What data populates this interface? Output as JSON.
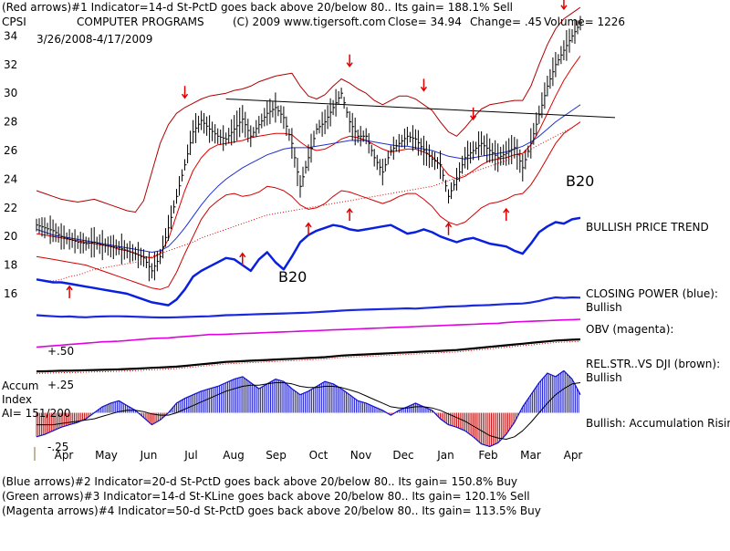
{
  "header": {
    "line1": "(Red arrows)#1 Indicator=14-d St-PctD goes back above 20/below 80.. Its gain= 188.1% Sell",
    "ticker": "CPSI",
    "company": "COMPUTER PROGRAMS",
    "copyright": "(C) 2009 www.tigersoft.com",
    "close": "Close=  34.94",
    "change": "Change= .45",
    "volume": "Volume= 1226",
    "date_range": "3/26/2008-4/17/2009"
  },
  "right_labels": {
    "bullish_price_trend": "BULLISH PRICE TREND",
    "closing_power_1": "CLOSING POWER (blue):",
    "closing_power_2": "Bullish",
    "obv": "OBV (magenta):",
    "relstr_1": "REL.STR..VS DJI (brown):",
    "relstr_2": "Bullish",
    "accum_rising": "Bullish: Accumulation Rising"
  },
  "chart_labels": {
    "b20_a": "B20",
    "b20_b": "B20"
  },
  "accum": {
    "title": "Accum",
    "sub": "Index",
    "ai": "AI= 151/200",
    "ticks": [
      "+.50",
      "+.25",
      "-.25"
    ]
  },
  "footer": {
    "line2": "(Blue arrows)#2 Indicator=20-d St-PctD goes back above 20/below 80.. Its gain= 150.8% Buy",
    "line3": "(Green arrows)#3 Indicator=14-d St-KLine goes back above 20/below 80.. Its gain= 120.1% Sell",
    "line4": "(Magenta arrows)#4 Indicator=50-d St-PctD goes back above 20/below 80.. Its gain= 113.5% Buy"
  },
  "chart_data": {
    "type": "line",
    "price_axis": {
      "ticks": [
        16,
        18,
        20,
        22,
        24,
        26,
        28,
        30,
        32,
        34
      ],
      "ylim": [
        14.6,
        36
      ]
    },
    "x_months": [
      "Apr",
      "May",
      "Jun",
      "Jul",
      "Aug",
      "Sep",
      "Oct",
      "Nov",
      "Dec",
      "Jan",
      "Feb",
      "Mar",
      "Apr"
    ],
    "closing_price": [
      20.8,
      20.6,
      20.4,
      20.0,
      19.8,
      19.6,
      19.5,
      19.6,
      19.4,
      19.3,
      19.2,
      19.0,
      18.8,
      18.5,
      17.6,
      18.6,
      20.6,
      22.8,
      25.0,
      27.3,
      28.1,
      27.5,
      27.0,
      26.8,
      27.5,
      28.2,
      27.0,
      27.8,
      28.6,
      29.0,
      28.3,
      26.5,
      23.5,
      25.5,
      27.5,
      28.0,
      29.0,
      30.0,
      28.0,
      27.0,
      27.0,
      25.5,
      24.5,
      26.0,
      26.5,
      27.0,
      26.8,
      26.0,
      25.4,
      25.0,
      22.8,
      24.0,
      25.5,
      26.0,
      26.5,
      26.0,
      25.5,
      25.8,
      26.2,
      24.8,
      26.5,
      28.5,
      30.5,
      32.0,
      33.0,
      34.0,
      34.9
    ],
    "upper_band": [
      23.2,
      23.0,
      22.8,
      22.6,
      22.5,
      22.4,
      22.5,
      22.6,
      22.4,
      22.2,
      22.0,
      21.8,
      21.7,
      22.5,
      24.5,
      26.5,
      27.8,
      28.6,
      29.0,
      29.3,
      29.6,
      29.8,
      29.9,
      30.0,
      30.2,
      30.3,
      30.5,
      30.8,
      31.0,
      31.2,
      31.3,
      31.4,
      30.5,
      29.8,
      29.6,
      29.9,
      30.5,
      31.0,
      30.7,
      30.3,
      30.0,
      29.5,
      29.2,
      29.5,
      29.8,
      29.8,
      29.6,
      29.2,
      28.8,
      28.0,
      27.3,
      27.0,
      27.6,
      28.3,
      28.9,
      29.2,
      29.3,
      29.4,
      29.5,
      29.5,
      30.5,
      32.0,
      33.4,
      34.5,
      35.2,
      35.6,
      36.0
    ],
    "lower_band": [
      18.6,
      18.5,
      18.4,
      18.3,
      18.2,
      18.1,
      18.0,
      17.8,
      17.6,
      17.4,
      17.2,
      17.0,
      16.8,
      16.6,
      16.4,
      16.3,
      16.5,
      17.5,
      18.8,
      20.0,
      21.2,
      22.0,
      22.5,
      22.9,
      23.0,
      22.8,
      22.9,
      23.1,
      23.5,
      23.4,
      23.2,
      22.8,
      22.2,
      21.9,
      22.0,
      22.3,
      22.8,
      23.2,
      23.1,
      22.9,
      22.7,
      22.5,
      22.3,
      22.5,
      22.8,
      23.0,
      23.0,
      22.6,
      22.1,
      21.4,
      21.0,
      20.8,
      21.0,
      21.5,
      22.0,
      22.3,
      22.4,
      22.6,
      22.9,
      23.0,
      23.6,
      24.5,
      25.5,
      26.5,
      27.2,
      27.6,
      28.0
    ],
    "ma_red": [
      20.2,
      20.1,
      20.0,
      19.9,
      19.8,
      19.7,
      19.6,
      19.5,
      19.4,
      19.3,
      19.1,
      19.0,
      18.8,
      18.6,
      18.5,
      18.8,
      19.8,
      21.5,
      23.2,
      24.6,
      25.5,
      26.1,
      26.4,
      26.5,
      26.6,
      26.7,
      26.9,
      27.0,
      27.1,
      27.2,
      27.2,
      27.1,
      26.6,
      26.2,
      26.0,
      26.1,
      26.4,
      26.8,
      27.0,
      26.9,
      26.7,
      26.4,
      26.1,
      25.9,
      26.0,
      26.1,
      26.1,
      25.9,
      25.6,
      25.0,
      24.3,
      24.0,
      24.2,
      24.6,
      25.0,
      25.3,
      25.4,
      25.5,
      25.7,
      25.8,
      26.4,
      27.4,
      28.6,
      29.8,
      30.9,
      31.8,
      32.6
    ],
    "ma_blue": [
      20.5,
      20.3,
      20.1,
      20.0,
      19.9,
      19.8,
      19.7,
      19.6,
      19.5,
      19.4,
      19.3,
      19.2,
      19.1,
      19.0,
      18.9,
      19.0,
      19.3,
      19.9,
      20.6,
      21.4,
      22.2,
      22.9,
      23.5,
      24.0,
      24.4,
      24.8,
      25.1,
      25.4,
      25.7,
      25.9,
      26.1,
      26.2,
      26.2,
      26.2,
      26.3,
      26.4,
      26.5,
      26.6,
      26.7,
      26.7,
      26.7,
      26.6,
      26.5,
      26.4,
      26.3,
      26.3,
      26.2,
      26.1,
      26.0,
      25.8,
      25.6,
      25.5,
      25.4,
      25.5,
      25.6,
      25.7,
      25.8,
      25.9,
      26.1,
      26.3,
      26.6,
      27.0,
      27.5,
      28.0,
      28.4,
      28.8,
      29.2
    ],
    "trendline": {
      "x": [
        23,
        66
      ],
      "y": [
        29.6,
        28.3
      ]
    },
    "relative_strength_indicator": [
      17.0,
      16.9,
      16.9,
      17.0,
      17.2,
      17.3,
      17.5,
      17.7,
      17.8,
      17.9,
      18.0,
      18.1,
      18.2,
      18.4,
      18.6,
      18.8,
      19.0,
      19.2,
      19.4,
      19.6,
      19.9,
      20.1,
      20.3,
      20.5,
      20.7,
      20.9,
      21.1,
      21.3,
      21.5,
      21.6,
      21.7,
      21.8,
      21.9,
      22.0,
      22.1,
      22.2,
      22.3,
      22.4,
      22.5,
      22.6,
      22.7,
      22.8,
      22.9,
      23.0,
      23.1,
      23.2,
      23.3,
      23.4,
      23.5,
      23.7,
      23.9,
      24.1,
      24.3,
      24.5,
      24.7,
      24.9,
      25.1,
      25.3,
      25.5,
      25.8,
      26.1,
      26.4,
      26.7,
      27.0,
      27.3,
      27.6,
      28.0
    ],
    "bullish_price_trend_line": [
      17.0,
      16.9,
      16.8,
      16.8,
      16.7,
      16.6,
      16.5,
      16.4,
      16.3,
      16.2,
      16.1,
      16.0,
      15.8,
      15.6,
      15.4,
      15.3,
      15.2,
      15.6,
      16.3,
      17.2,
      17.6,
      17.9,
      18.2,
      18.5,
      18.4,
      18.0,
      17.6,
      18.4,
      18.9,
      18.2,
      17.7,
      18.6,
      19.6,
      20.1,
      20.4,
      20.6,
      20.8,
      20.7,
      20.5,
      20.4,
      20.5,
      20.6,
      20.7,
      20.8,
      20.5,
      20.2,
      20.3,
      20.5,
      20.3,
      20.0,
      19.8,
      19.6,
      19.8,
      19.9,
      19.7,
      19.5,
      19.4,
      19.3,
      19.0,
      18.8,
      19.5,
      20.3,
      20.7,
      21.0,
      20.9,
      21.2,
      21.3
    ],
    "closing_power": [
      0.8,
      0.7,
      0.6,
      0.5,
      0.55,
      0.45,
      0.4,
      0.5,
      0.55,
      0.6,
      0.6,
      0.55,
      0.5,
      0.45,
      0.4,
      0.35,
      0.35,
      0.4,
      0.45,
      0.5,
      0.55,
      0.6,
      0.7,
      0.8,
      0.85,
      0.9,
      0.95,
      1.0,
      1.05,
      1.1,
      1.15,
      1.2,
      1.25,
      1.3,
      1.4,
      1.5,
      1.6,
      1.7,
      1.8,
      1.85,
      1.9,
      1.95,
      2.0,
      2.05,
      2.1,
      2.15,
      2.1,
      2.2,
      2.3,
      2.4,
      2.5,
      2.55,
      2.6,
      2.7,
      2.75,
      2.8,
      2.9,
      3.0,
      3.05,
      3.1,
      3.3,
      3.6,
      4.0,
      4.3,
      4.2,
      4.3,
      4.25
    ],
    "obv": [
      0.2,
      0.3,
      0.4,
      0.5,
      0.6,
      0.7,
      0.8,
      0.9,
      1.0,
      1.05,
      1.1,
      1.2,
      1.3,
      1.4,
      1.5,
      1.55,
      1.6,
      1.7,
      1.8,
      1.9,
      2.0,
      2.1,
      2.1,
      2.15,
      2.2,
      2.25,
      2.3,
      2.35,
      2.4,
      2.45,
      2.5,
      2.55,
      2.6,
      2.65,
      2.7,
      2.75,
      2.8,
      2.85,
      2.9,
      2.95,
      3.0,
      3.05,
      3.1,
      3.15,
      3.2,
      3.25,
      3.3,
      3.35,
      3.4,
      3.45,
      3.5,
      3.55,
      3.6,
      3.65,
      3.7,
      3.75,
      3.8,
      3.9,
      4.0,
      4.05,
      4.1,
      4.15,
      4.2,
      4.25,
      4.3,
      4.35,
      4.4
    ],
    "rel_strength_dji": [
      0.1,
      0.12,
      0.15,
      0.18,
      0.2,
      0.22,
      0.25,
      0.28,
      0.3,
      0.33,
      0.36,
      0.4,
      0.45,
      0.5,
      0.55,
      0.6,
      0.65,
      0.7,
      0.8,
      0.9,
      1.0,
      1.1,
      1.2,
      1.3,
      1.35,
      1.4,
      1.45,
      1.5,
      1.55,
      1.6,
      1.65,
      1.7,
      1.75,
      1.8,
      1.85,
      1.9,
      2.0,
      2.1,
      2.15,
      2.2,
      2.25,
      2.3,
      2.35,
      2.4,
      2.45,
      2.5,
      2.55,
      2.6,
      2.65,
      2.7,
      2.75,
      2.8,
      2.9,
      3.0,
      3.1,
      3.2,
      3.3,
      3.4,
      3.5,
      3.6,
      3.7,
      3.8,
      3.9,
      4.0,
      4.05,
      4.1,
      4.15
    ],
    "accum_index": {
      "ylim": [
        -0.3,
        0.55
      ],
      "values": [
        -0.2,
        -0.18,
        -0.15,
        -0.12,
        -0.1,
        -0.08,
        -0.05,
        0.0,
        0.05,
        0.08,
        0.1,
        0.06,
        0.02,
        -0.04,
        -0.1,
        -0.06,
        0.0,
        0.08,
        0.12,
        0.15,
        0.18,
        0.2,
        0.22,
        0.25,
        0.28,
        0.3,
        0.25,
        0.2,
        0.24,
        0.28,
        0.26,
        0.2,
        0.15,
        0.18,
        0.22,
        0.26,
        0.24,
        0.2,
        0.15,
        0.1,
        0.08,
        0.05,
        0.02,
        -0.02,
        0.02,
        0.05,
        0.08,
        0.05,
        0.02,
        -0.05,
        -0.1,
        -0.12,
        -0.15,
        -0.2,
        -0.26,
        -0.28,
        -0.25,
        -0.18,
        -0.08,
        0.05,
        0.15,
        0.25,
        0.33,
        0.3,
        0.35,
        0.28,
        0.15
      ],
      "ma": [
        -0.1,
        -0.1,
        -0.1,
        -0.09,
        -0.08,
        -0.07,
        -0.06,
        -0.05,
        -0.03,
        -0.01,
        0.01,
        0.02,
        0.02,
        0.01,
        -0.01,
        -0.02,
        -0.02,
        0.0,
        0.03,
        0.06,
        0.09,
        0.12,
        0.15,
        0.18,
        0.2,
        0.22,
        0.23,
        0.23,
        0.24,
        0.25,
        0.25,
        0.24,
        0.22,
        0.21,
        0.21,
        0.22,
        0.22,
        0.21,
        0.19,
        0.17,
        0.14,
        0.11,
        0.08,
        0.05,
        0.04,
        0.04,
        0.05,
        0.05,
        0.04,
        0.02,
        -0.01,
        -0.04,
        -0.07,
        -0.11,
        -0.15,
        -0.19,
        -0.21,
        -0.22,
        -0.2,
        -0.15,
        -0.08,
        0.0,
        0.08,
        0.15,
        0.2,
        0.24,
        0.25
      ]
    },
    "signals": [
      {
        "color": "#e00000",
        "dir": "up",
        "x": 4,
        "y": 16.2
      },
      {
        "color": "#e00000",
        "dir": "down",
        "x": 18,
        "y": 30.0
      },
      {
        "color": "#e00000",
        "dir": "up",
        "x": 25,
        "y": 18.5
      },
      {
        "color": "#e00000",
        "dir": "up",
        "x": 33,
        "y": 20.6
      },
      {
        "color": "#e00000",
        "dir": "down",
        "x": 38,
        "y": 32.2
      },
      {
        "color": "#e00000",
        "dir": "up",
        "x": 38,
        "y": 21.6
      },
      {
        "color": "#e00000",
        "dir": "down",
        "x": 47,
        "y": 30.5
      },
      {
        "color": "#e00000",
        "dir": "up",
        "x": 50,
        "y": 20.6
      },
      {
        "color": "#e00000",
        "dir": "down",
        "x": 53,
        "y": 28.5
      },
      {
        "color": "#e00000",
        "dir": "up",
        "x": 57,
        "y": 21.6
      },
      {
        "color": "#e00000",
        "dir": "down",
        "x": 64,
        "y": 36.2
      }
    ]
  }
}
